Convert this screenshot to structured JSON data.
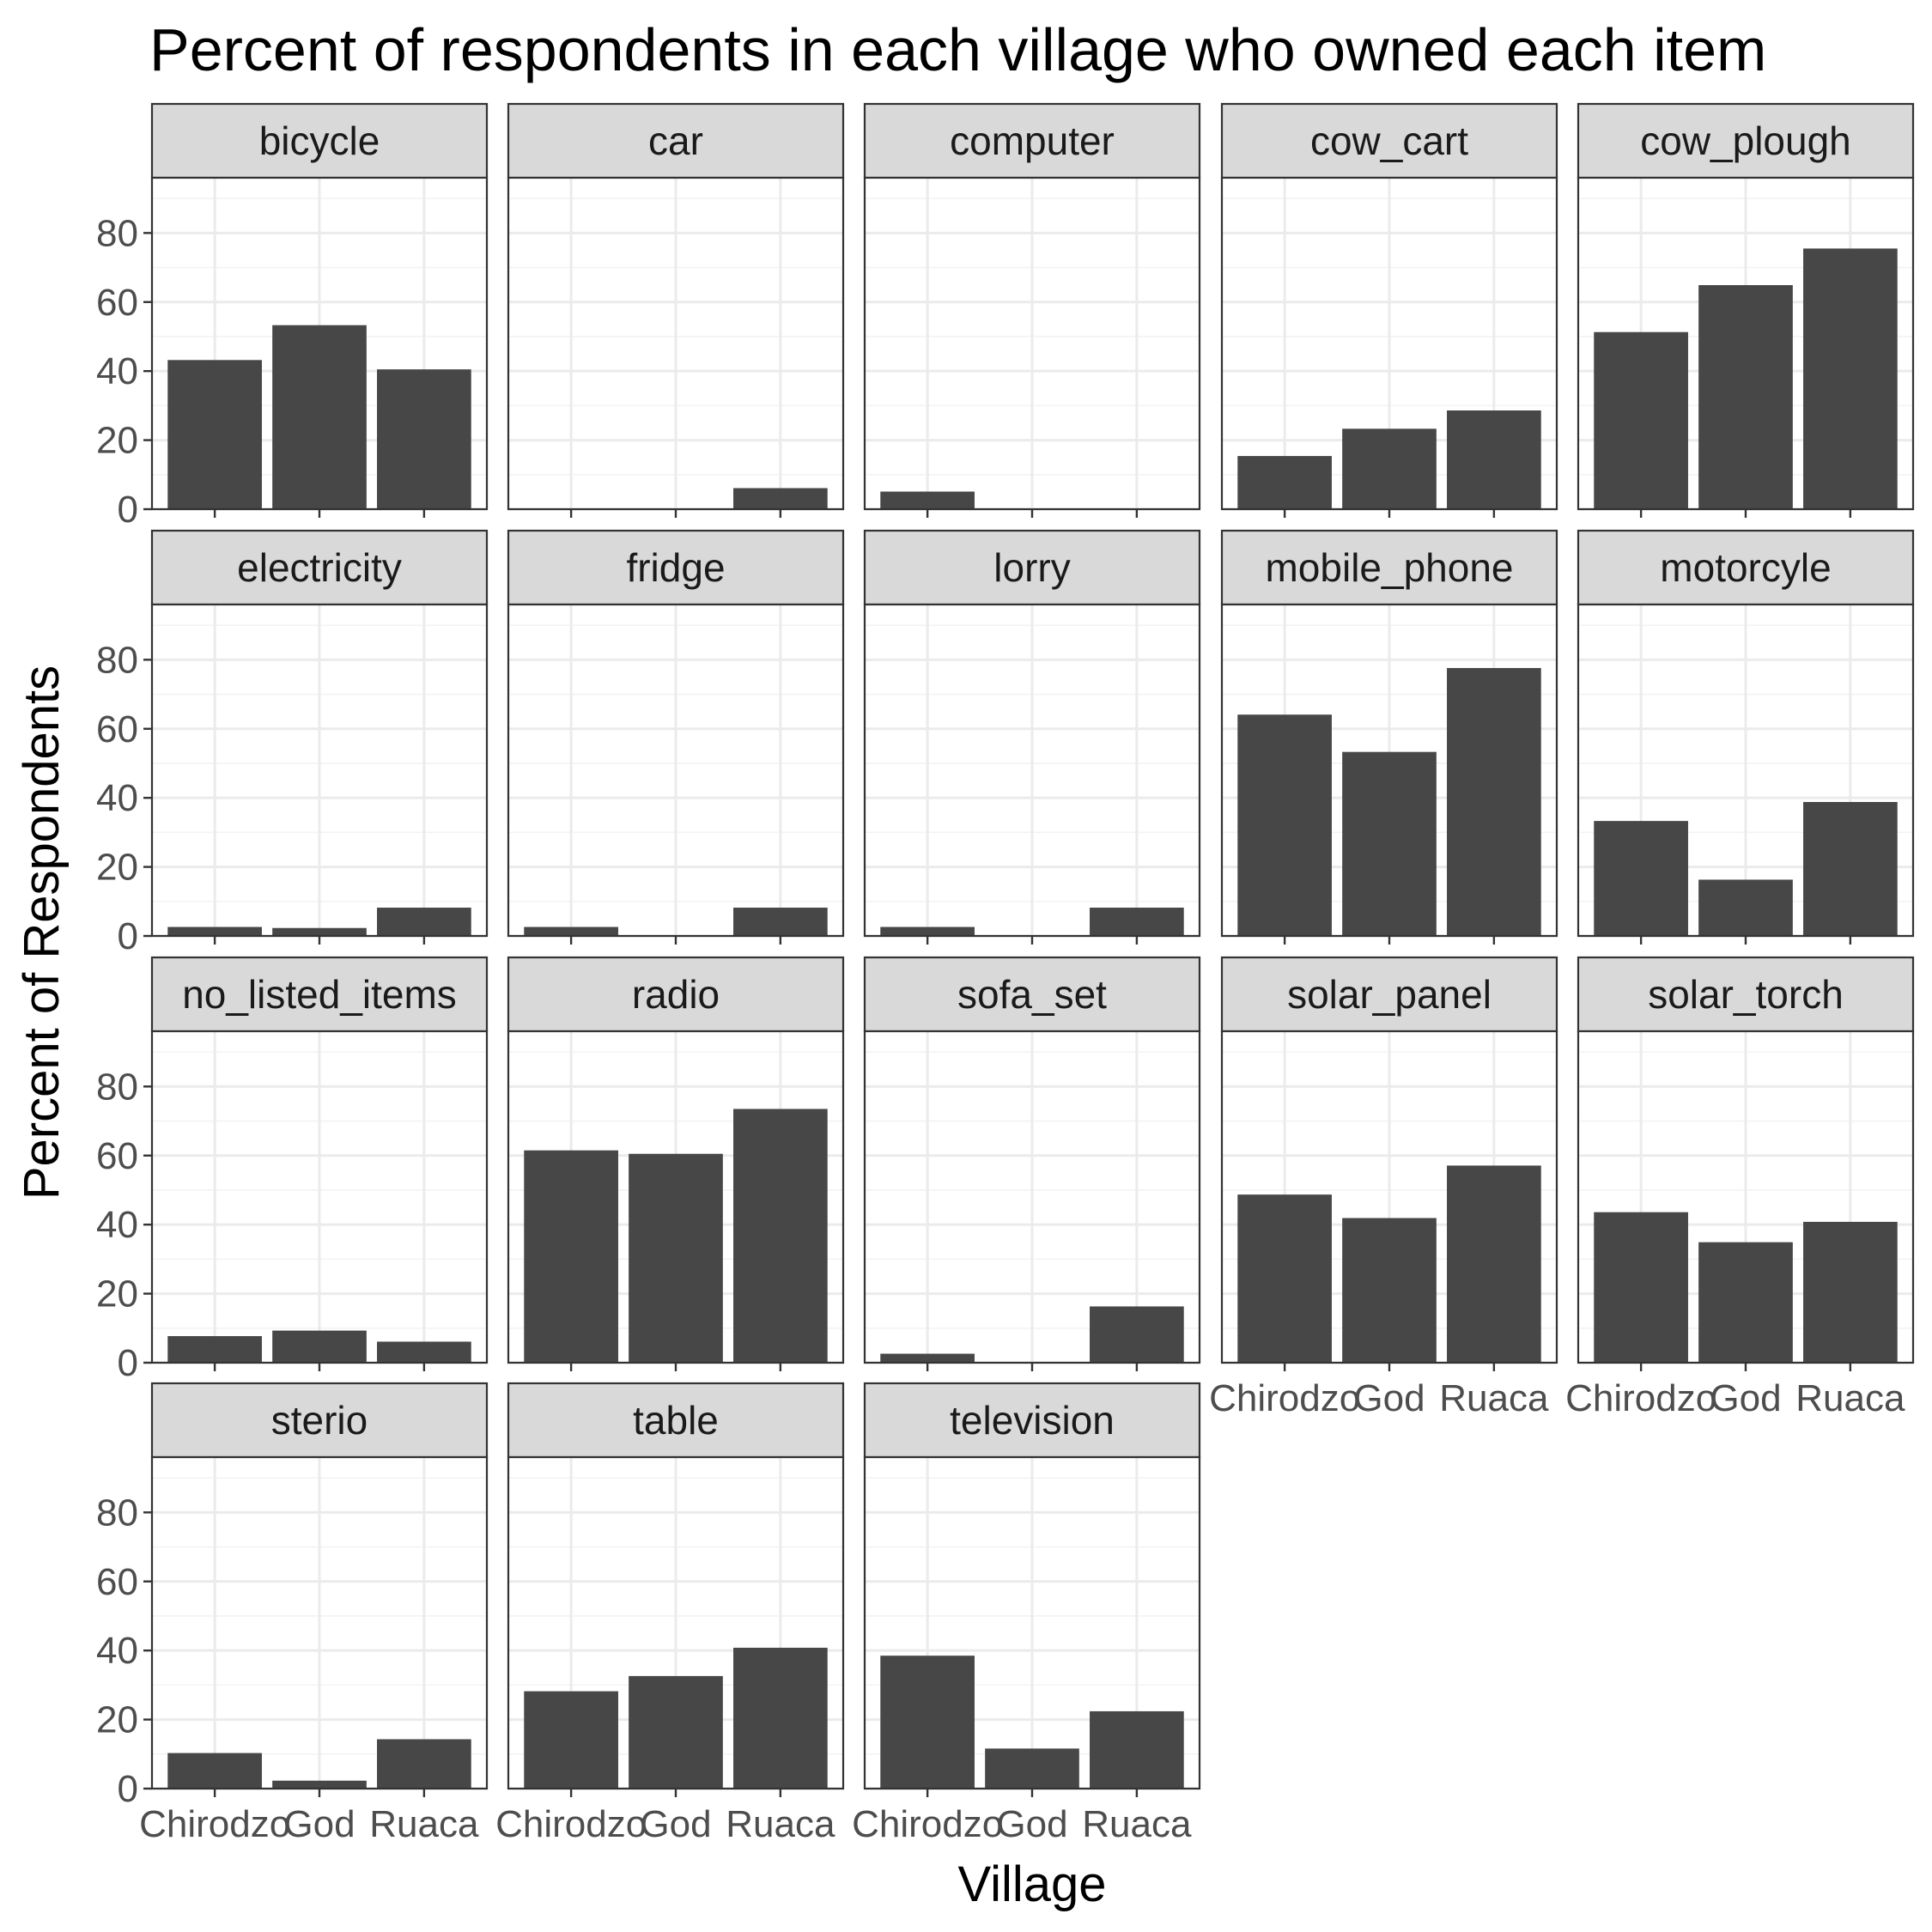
{
  "chart_data": {
    "type": "bar",
    "title": "Percent of respondents in each village who owned each item",
    "xlabel": "Village",
    "ylabel": "Percent of Respondents",
    "categories": [
      "Chirodzo",
      "God",
      "Ruaca"
    ],
    "ylim": [
      0,
      96
    ],
    "yticks": [
      0,
      20,
      40,
      60,
      80
    ],
    "grid": true,
    "facet_columns": 5,
    "bar_color": "#474747",
    "panels": [
      {
        "name": "bicycle",
        "values": [
          43.2,
          53.3,
          40.5
        ]
      },
      {
        "name": "car",
        "values": [
          0,
          0,
          6.1
        ]
      },
      {
        "name": "computer",
        "values": [
          5.1,
          0,
          0
        ]
      },
      {
        "name": "cow_cart",
        "values": [
          15.4,
          23.3,
          28.6
        ]
      },
      {
        "name": "cow_plough",
        "values": [
          51.3,
          64.9,
          75.5
        ]
      },
      {
        "name": "electricity",
        "values": [
          2.6,
          2.3,
          8.2
        ]
      },
      {
        "name": "fridge",
        "values": [
          2.6,
          0,
          8.2
        ]
      },
      {
        "name": "lorry",
        "values": [
          2.6,
          0,
          8.2
        ]
      },
      {
        "name": "mobile_phone",
        "values": [
          64.1,
          53.3,
          77.6
        ]
      },
      {
        "name": "motorcyle",
        "values": [
          33.3,
          16.3,
          38.8
        ]
      },
      {
        "name": "no_listed_items",
        "values": [
          7.7,
          9.3,
          6.1
        ]
      },
      {
        "name": "radio",
        "values": [
          61.5,
          60.5,
          73.5
        ]
      },
      {
        "name": "sofa_set",
        "values": [
          2.6,
          0,
          16.3
        ]
      },
      {
        "name": "solar_panel",
        "values": [
          48.7,
          41.9,
          57.1
        ]
      },
      {
        "name": "solar_torch",
        "values": [
          43.6,
          34.9,
          40.8
        ]
      },
      {
        "name": "sterio",
        "values": [
          10.3,
          2.3,
          14.3
        ]
      },
      {
        "name": "table",
        "values": [
          28.2,
          32.6,
          40.8
        ]
      },
      {
        "name": "television",
        "values": [
          38.5,
          11.6,
          22.4
        ]
      }
    ]
  }
}
